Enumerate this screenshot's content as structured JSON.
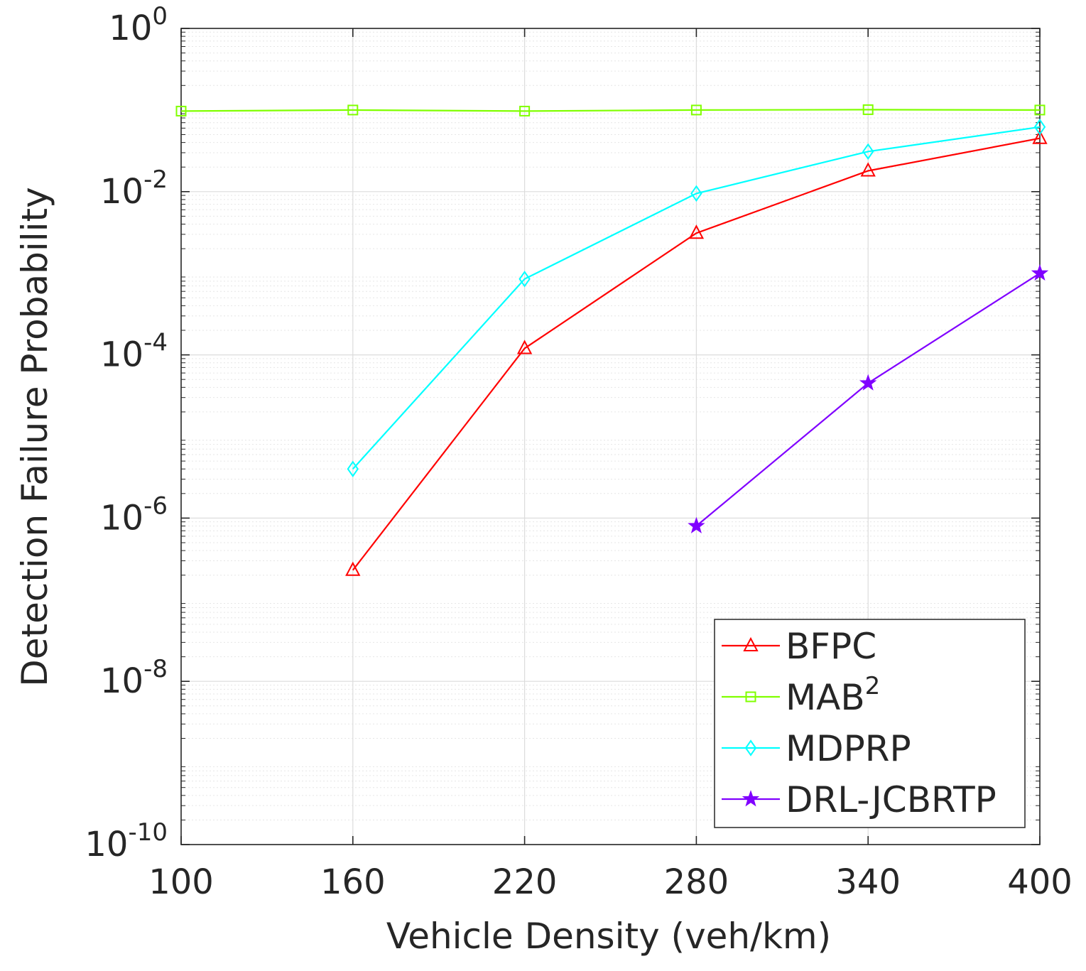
{
  "chart_data": {
    "type": "line",
    "title": "",
    "xlabel": "Vehicle Density (veh/km)",
    "ylabel": "Detection Failure Probability",
    "xlim": [
      100,
      400
    ],
    "ylim_exp": [
      -10,
      0
    ],
    "yscale": "log",
    "grid": true,
    "legend_position": "bottom-right",
    "x_ticks": [
      100,
      160,
      220,
      280,
      340,
      400
    ],
    "x_tick_labels": [
      "100",
      "160",
      "220",
      "280",
      "340",
      "400"
    ],
    "y_ticks_exp": [
      -10,
      -8,
      -6,
      -4,
      -2,
      0
    ],
    "y_tick_labels": [
      {
        "base": "10",
        "exp": "-10"
      },
      {
        "base": "10",
        "exp": "-8"
      },
      {
        "base": "10",
        "exp": "-6"
      },
      {
        "base": "10",
        "exp": "-4"
      },
      {
        "base": "10",
        "exp": "-2"
      },
      {
        "base": "10",
        "exp": "0"
      }
    ],
    "series": [
      {
        "name": "BFPC",
        "name_sup": "",
        "color": "#ff0000",
        "marker": "triangle",
        "x": [
          160,
          220,
          280,
          340,
          400
        ],
        "y": [
          2.3e-07,
          0.00012,
          0.0031,
          0.018,
          0.045
        ]
      },
      {
        "name": "MAB",
        "name_sup": "2",
        "color": "#80ff00",
        "marker": "square",
        "x": [
          100,
          160,
          220,
          280,
          340,
          400
        ],
        "y": [
          0.097,
          0.1,
          0.097,
          0.1,
          0.101,
          0.1
        ]
      },
      {
        "name": "MDPRP",
        "name_sup": "",
        "color": "#00ffff",
        "marker": "diamond",
        "x": [
          160,
          220,
          280,
          340,
          400
        ],
        "y": [
          4e-06,
          0.00085,
          0.0095,
          0.031,
          0.062
        ]
      },
      {
        "name": "DRL-JCBRTP",
        "name_sup": "",
        "color": "#8000ff",
        "marker": "star",
        "x": [
          280,
          340,
          400
        ],
        "y": [
          8e-07,
          4.5e-05,
          0.001
        ]
      }
    ]
  }
}
